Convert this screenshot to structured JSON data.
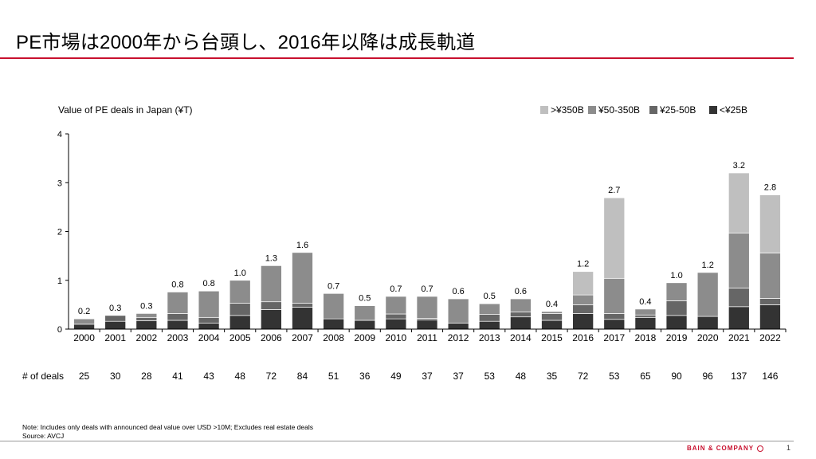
{
  "title": "PE市場は2000年から台頭し、2016年以降は成長軌道",
  "chart_data": {
    "type": "bar",
    "stacked": true,
    "title": "Value of PE deals in Japan (¥T)",
    "categories": [
      "2000",
      "2001",
      "2002",
      "2003",
      "2004",
      "2005",
      "2006",
      "2007",
      "2008",
      "2009",
      "2010",
      "2011",
      "2012",
      "2013",
      "2014",
      "2015",
      "2016",
      "2017",
      "2018",
      "2019",
      "2020",
      "2021",
      "2022"
    ],
    "series": [
      {
        "name": "<¥25B",
        "color": "#333333",
        "values": [
          0.1,
          0.16,
          0.17,
          0.18,
          0.12,
          0.28,
          0.4,
          0.45,
          0.21,
          0.18,
          0.21,
          0.19,
          0.12,
          0.16,
          0.25,
          0.18,
          0.32,
          0.2,
          0.24,
          0.28,
          0.26,
          0.46,
          0.5
        ]
      },
      {
        "name": "¥25-50B",
        "color": "#666666",
        "values": [
          0.0,
          0.12,
          0.07,
          0.14,
          0.12,
          0.25,
          0.16,
          0.08,
          0.0,
          0.0,
          0.1,
          0.03,
          0.0,
          0.14,
          0.1,
          0.14,
          0.18,
          0.12,
          0.05,
          0.3,
          0.0,
          0.38,
          0.13
        ]
      },
      {
        "name": "¥50-350B",
        "color": "#8c8c8c",
        "values": [
          0.11,
          0.0,
          0.08,
          0.44,
          0.54,
          0.47,
          0.74,
          1.04,
          0.52,
          0.3,
          0.36,
          0.45,
          0.5,
          0.22,
          0.27,
          0.04,
          0.2,
          0.72,
          0.12,
          0.37,
          0.9,
          1.13,
          0.93
        ]
      },
      {
        "name": ">¥350B",
        "color": "#bfbfbf",
        "values": [
          0,
          0,
          0,
          0,
          0,
          0,
          0,
          0,
          0,
          0,
          0,
          0,
          0,
          0,
          0,
          0,
          0.48,
          1.65,
          0,
          0,
          0,
          1.23,
          1.19
        ]
      }
    ],
    "totals": [
      "0.2",
      "0.3",
      "0.3",
      "0.8",
      "0.8",
      "1.0",
      "1.3",
      "1.6",
      "0.7",
      "0.5",
      "0.7",
      "0.7",
      "0.6",
      "0.5",
      "0.6",
      "0.4",
      "1.2",
      "2.7",
      "0.4",
      "1.0",
      "1.2",
      "3.2",
      "2.8"
    ],
    "deals_label": "# of deals",
    "deals": [
      "25",
      "30",
      "28",
      "41",
      "43",
      "48",
      "72",
      "84",
      "51",
      "36",
      "49",
      "37",
      "37",
      "53",
      "48",
      "35",
      "72",
      "53",
      "65",
      "90",
      "96",
      "137",
      "146"
    ],
    "ylim": [
      0,
      4
    ],
    "yticks": [
      "0",
      "1",
      "2",
      "3",
      "4"
    ],
    "legend_position": "top-right",
    "legend_order": [
      ">¥350B",
      "¥50-350B",
      "¥25-50B",
      "<¥25B"
    ]
  },
  "footnote": {
    "note": "Note: Includes only deals with announced deal value over USD  >10M; Excludes real estate deals",
    "source": "Source: AVCJ"
  },
  "brand": "BAIN & COMPANY",
  "page_number": "1"
}
